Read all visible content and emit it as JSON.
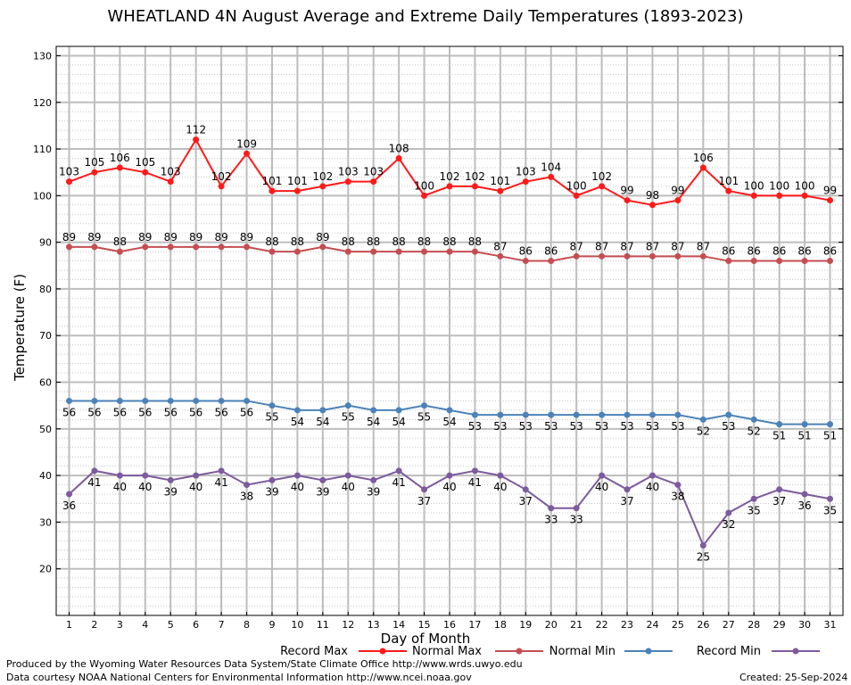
{
  "chart_data": {
    "type": "line",
    "title": "WHEATLAND 4N August Average and Extreme Daily Temperatures (1893-2023)",
    "xlabel": "Day of Month",
    "ylabel": "Temperature (F)",
    "ylim": [
      10,
      132
    ],
    "yticks": [
      20,
      30,
      40,
      50,
      60,
      70,
      80,
      90,
      100,
      110,
      120,
      130
    ],
    "grid": true,
    "legend_position": "bottom",
    "x": [
      1,
      2,
      3,
      4,
      5,
      6,
      7,
      8,
      9,
      10,
      11,
      12,
      13,
      14,
      15,
      16,
      17,
      18,
      19,
      20,
      21,
      22,
      23,
      24,
      25,
      26,
      27,
      28,
      29,
      30,
      31
    ],
    "series": [
      {
        "name": "Record Max",
        "color": "#ff1a1a",
        "label_pos": "above",
        "values": [
          103,
          105,
          106,
          105,
          103,
          112,
          102,
          109,
          101,
          101,
          102,
          103,
          103,
          108,
          100,
          102,
          102,
          101,
          103,
          104,
          100,
          102,
          99,
          98,
          99,
          106,
          101,
          100,
          100,
          100,
          99
        ]
      },
      {
        "name": "Normal Max",
        "color": "#c44e52",
        "label_pos": "above",
        "values": [
          89,
          89,
          88,
          89,
          89,
          89,
          89,
          89,
          88,
          88,
          89,
          88,
          88,
          88,
          88,
          88,
          88,
          87,
          86,
          86,
          87,
          87,
          87,
          87,
          87,
          87,
          86,
          86,
          86,
          86,
          86
        ]
      },
      {
        "name": "Normal Min",
        "color": "#4c82b8",
        "label_pos": "below",
        "values": [
          56,
          56,
          56,
          56,
          56,
          56,
          56,
          56,
          55,
          54,
          54,
          55,
          54,
          54,
          55,
          54,
          53,
          53,
          53,
          53,
          53,
          53,
          53,
          53,
          53,
          52,
          53,
          52,
          51,
          51,
          51
        ]
      },
      {
        "name": "Record Min",
        "color": "#7d5b9e",
        "label_pos": "below",
        "values": [
          36,
          41,
          40,
          40,
          39,
          40,
          41,
          38,
          39,
          40,
          39,
          40,
          39,
          41,
          37,
          40,
          41,
          40,
          37,
          33,
          33,
          40,
          37,
          40,
          38,
          25,
          32,
          35,
          37,
          36,
          35
        ]
      }
    ]
  },
  "footer": {
    "producer": "Produced by the Wyoming Water Resources Data System/State Climate Office http://www.wrds.uwyo.edu",
    "courtesy": "Data courtesy NOAA National Centers for Environmental Information http://www.ncei.noaa.gov",
    "created": "Created: 25-Sep-2024"
  }
}
